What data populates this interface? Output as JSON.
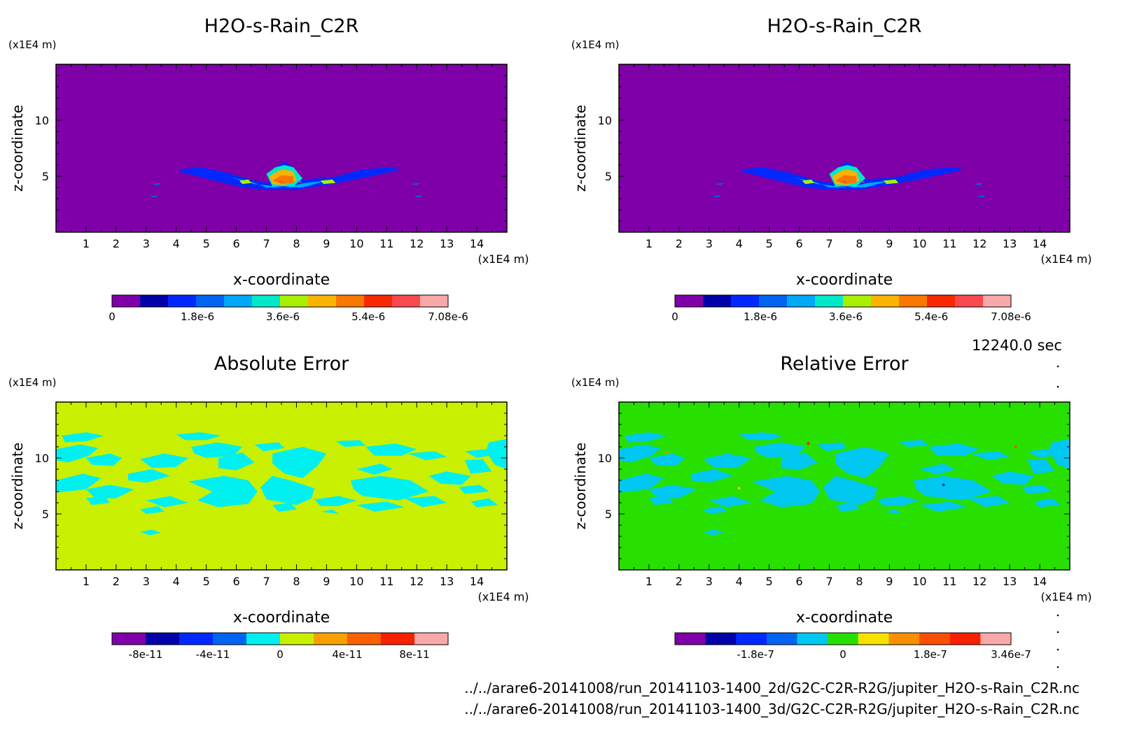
{
  "time_label": "12240.0 sec",
  "footer_lines": [
    "../../arare6-20141008/run_20141103-1400_2d/G2C-C2R-R2G/jupiter_H2O-s-Rain_C2R.nc",
    "../../arare6-20141008/run_20141103-1400_3d/G2C-C2R-R2G/jupiter_H2O-s-Rain_C2R.nc"
  ],
  "chart_data": [
    {
      "type": "heatmap",
      "title": "H2O-s-Rain_C2R",
      "xlabel": "x-coordinate",
      "ylabel": "z-coordinate",
      "x_unit": "(x1E4 m)",
      "y_unit": "(x1E4 m)",
      "xlim": [
        0,
        15
      ],
      "ylim": [
        0,
        15
      ],
      "x_ticks": [
        "1",
        "2",
        "3",
        "4",
        "5",
        "6",
        "7",
        "8",
        "9",
        "10",
        "11",
        "12",
        "13",
        "14"
      ],
      "y_ticks": [
        "5",
        "10"
      ],
      "background_color": "#7f00a8",
      "feature": "rain layer at z about 4-6 between x 4 and 11.5, maximum near x 7.6, z 4.5",
      "colorbar": {
        "colors": [
          "#7f00a8",
          "#0000a8",
          "#0028ff",
          "#0064f0",
          "#00a8f8",
          "#00e8c8",
          "#a8f000",
          "#f8b400",
          "#f87800",
          "#f82800",
          "#f84850",
          "#f8a8a8"
        ],
        "tick_labels": [
          "0",
          "1.8e-6",
          "3.6e-6",
          "5.4e-6",
          "7.08e-6"
        ],
        "range": [
          0,
          7.08e-06
        ]
      }
    },
    {
      "type": "heatmap",
      "title": "H2O-s-Rain_C2R",
      "xlabel": "x-coordinate",
      "ylabel": "z-coordinate",
      "x_unit": "(x1E4 m)",
      "y_unit": "(x1E4 m)",
      "xlim": [
        0,
        15
      ],
      "ylim": [
        0,
        15
      ],
      "x_ticks": [
        "1",
        "2",
        "3",
        "4",
        "5",
        "6",
        "7",
        "8",
        "9",
        "10",
        "11",
        "12",
        "13",
        "14"
      ],
      "y_ticks": [
        "5",
        "10"
      ],
      "background_color": "#7f00a8",
      "feature": "rain layer at z about 4-6 between x 4 and 11.5, maximum near x 7.6, z 4.5",
      "colorbar": {
        "colors": [
          "#7f00a8",
          "#0000a8",
          "#0028ff",
          "#0064f0",
          "#00a8f8",
          "#00e8c8",
          "#a8f000",
          "#f8b400",
          "#f87800",
          "#f82800",
          "#f84850",
          "#f8a8a8"
        ],
        "tick_labels": [
          "0",
          "1.8e-6",
          "3.6e-6",
          "5.4e-6",
          "7.08e-6"
        ],
        "range": [
          0,
          7.08e-06
        ]
      }
    },
    {
      "type": "heatmap",
      "title": "Absolute Error",
      "xlabel": "x-coordinate",
      "ylabel": "z-coordinate",
      "x_unit": "(x1E4 m)",
      "y_unit": "(x1E4 m)",
      "xlim": [
        0,
        15
      ],
      "ylim": [
        0,
        15
      ],
      "x_ticks": [
        "1",
        "2",
        "3",
        "4",
        "5",
        "6",
        "7",
        "8",
        "9",
        "10",
        "11",
        "12",
        "13",
        "14"
      ],
      "y_ticks": [
        "5",
        "10"
      ],
      "background_color": "#c8f000",
      "patch_color": "#00f0f0",
      "colorbar": {
        "colors": [
          "#7f00a8",
          "#0000a8",
          "#0028ff",
          "#0064f0",
          "#00f0f0",
          "#c8f000",
          "#f8a000",
          "#f86000",
          "#f82000",
          "#f8a8a8"
        ],
        "tick_labels": [
          "-8e-11",
          "-4e-11",
          "0",
          "4e-11",
          "8e-11"
        ],
        "range": [
          -1e-10,
          1e-10
        ]
      }
    },
    {
      "type": "heatmap",
      "title": "Relative Error",
      "xlabel": "x-coordinate",
      "ylabel": "z-coordinate",
      "x_unit": "(x1E4 m)",
      "y_unit": "(x1E4 m)",
      "xlim": [
        0,
        15
      ],
      "ylim": [
        0,
        15
      ],
      "x_ticks": [
        "1",
        "2",
        "3",
        "4",
        "5",
        "6",
        "7",
        "8",
        "9",
        "10",
        "11",
        "12",
        "13",
        "14"
      ],
      "y_ticks": [
        "5",
        "10"
      ],
      "background_color": "#28e000",
      "patch_color": "#00c8f0",
      "colorbar": {
        "colors": [
          "#7f00a8",
          "#0000a8",
          "#0028ff",
          "#0064f0",
          "#00c8f0",
          "#28e000",
          "#f8e000",
          "#f89000",
          "#f85000",
          "#f82000",
          "#f8a8a8"
        ],
        "tick_labels": [
          "-1.8e-7",
          "0",
          "1.8e-7",
          "3.46e-7"
        ],
        "range": [
          -3.46e-07,
          3.46e-07
        ]
      }
    }
  ]
}
